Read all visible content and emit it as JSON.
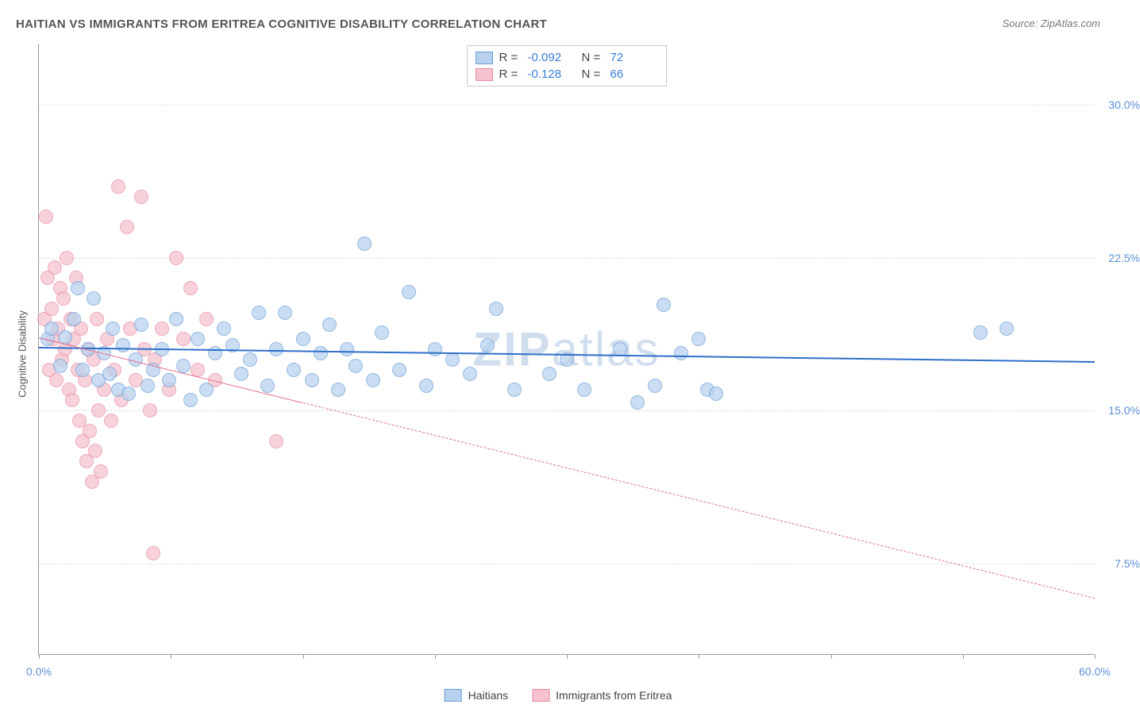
{
  "title": "HAITIAN VS IMMIGRANTS FROM ERITREA COGNITIVE DISABILITY CORRELATION CHART",
  "source": "Source: ZipAtlas.com",
  "watermark": "ZIPatlas",
  "y_axis_title": "Cognitive Disability",
  "chart": {
    "type": "scatter",
    "xlim": [
      0,
      60
    ],
    "ylim": [
      3,
      33
    ],
    "x_ticks": [
      0,
      7.5,
      15,
      22.5,
      30,
      37.5,
      45,
      52.5,
      60
    ],
    "x_tick_labels": {
      "0": "0.0%",
      "60": "60.0%"
    },
    "y_gridlines": [
      7.5,
      15.0,
      22.5,
      30.0
    ],
    "y_tick_labels": [
      "7.5%",
      "15.0%",
      "22.5%",
      "30.0%"
    ],
    "background_color": "#ffffff",
    "grid_color": "#dddddd",
    "axis_color": "#999999",
    "tick_label_color": "#5b8fd6"
  },
  "series": [
    {
      "name": "Haitians",
      "fill": "#b8d1ee",
      "stroke": "#6a9fd8",
      "fill_opacity": 0.72,
      "line_color": "#2e6fc9",
      "line_width": 2.5,
      "line_dash": "solid",
      "R": "-0.092",
      "N": "72",
      "regression": {
        "x1": 0,
        "y1": 18.1,
        "x2": 60,
        "y2": 17.4
      },
      "points": [
        [
          0.5,
          18.5
        ],
        [
          0.7,
          19.0
        ],
        [
          1.2,
          17.2
        ],
        [
          1.5,
          18.6
        ],
        [
          2.0,
          19.5
        ],
        [
          2.2,
          21.0
        ],
        [
          2.5,
          17.0
        ],
        [
          2.8,
          18.0
        ],
        [
          3.1,
          20.5
        ],
        [
          3.4,
          16.5
        ],
        [
          3.7,
          17.8
        ],
        [
          4.0,
          16.8
        ],
        [
          4.2,
          19.0
        ],
        [
          4.5,
          16.0
        ],
        [
          4.8,
          18.2
        ],
        [
          5.1,
          15.8
        ],
        [
          5.5,
          17.5
        ],
        [
          5.8,
          19.2
        ],
        [
          6.2,
          16.2
        ],
        [
          6.5,
          17.0
        ],
        [
          7.0,
          18.0
        ],
        [
          7.4,
          16.5
        ],
        [
          7.8,
          19.5
        ],
        [
          8.2,
          17.2
        ],
        [
          8.6,
          15.5
        ],
        [
          9.0,
          18.5
        ],
        [
          9.5,
          16.0
        ],
        [
          10.0,
          17.8
        ],
        [
          10.5,
          19.0
        ],
        [
          11.0,
          18.2
        ],
        [
          11.5,
          16.8
        ],
        [
          12.0,
          17.5
        ],
        [
          12.5,
          19.8
        ],
        [
          13.0,
          16.2
        ],
        [
          13.5,
          18.0
        ],
        [
          14.0,
          19.8
        ],
        [
          14.5,
          17.0
        ],
        [
          15.0,
          18.5
        ],
        [
          15.5,
          16.5
        ],
        [
          16.0,
          17.8
        ],
        [
          16.5,
          19.2
        ],
        [
          17.0,
          16.0
        ],
        [
          17.5,
          18.0
        ],
        [
          18.0,
          17.2
        ],
        [
          18.5,
          23.2
        ],
        [
          19.0,
          16.5
        ],
        [
          19.5,
          18.8
        ],
        [
          20.5,
          17.0
        ],
        [
          21.0,
          20.8
        ],
        [
          22.0,
          16.2
        ],
        [
          22.5,
          18.0
        ],
        [
          23.5,
          17.5
        ],
        [
          24.5,
          16.8
        ],
        [
          25.5,
          18.2
        ],
        [
          26.0,
          20.0
        ],
        [
          27.0,
          16.0
        ],
        [
          29.0,
          16.8
        ],
        [
          30.0,
          17.5
        ],
        [
          31.0,
          16.0
        ],
        [
          33.0,
          18.0
        ],
        [
          34.0,
          15.4
        ],
        [
          35.0,
          16.2
        ],
        [
          35.5,
          20.2
        ],
        [
          36.5,
          17.8
        ],
        [
          37.5,
          18.5
        ],
        [
          38.0,
          16.0
        ],
        [
          38.5,
          15.8
        ],
        [
          53.5,
          18.8
        ],
        [
          55.0,
          19.0
        ]
      ]
    },
    {
      "name": "Immigrants from Eritrea",
      "fill": "#f5c2ce",
      "stroke": "#e88ba3",
      "fill_opacity": 0.72,
      "line_color": "#e26f8d",
      "line_width": 1.5,
      "line_dash": "dashed",
      "dash_solid_until": 15,
      "R": "-0.128",
      "N": "66",
      "regression": {
        "x1": 0,
        "y1": 18.6,
        "x2": 60,
        "y2": 5.8
      },
      "points": [
        [
          0.3,
          19.5
        ],
        [
          0.4,
          24.5
        ],
        [
          0.5,
          21.5
        ],
        [
          0.6,
          17.0
        ],
        [
          0.7,
          20.0
        ],
        [
          0.8,
          18.5
        ],
        [
          0.9,
          22.0
        ],
        [
          1.0,
          16.5
        ],
        [
          1.1,
          19.0
        ],
        [
          1.2,
          21.0
        ],
        [
          1.3,
          17.5
        ],
        [
          1.4,
          20.5
        ],
        [
          1.5,
          18.0
        ],
        [
          1.6,
          22.5
        ],
        [
          1.7,
          16.0
        ],
        [
          1.8,
          19.5
        ],
        [
          1.9,
          15.5
        ],
        [
          2.0,
          18.5
        ],
        [
          2.1,
          21.5
        ],
        [
          2.2,
          17.0
        ],
        [
          2.3,
          14.5
        ],
        [
          2.4,
          19.0
        ],
        [
          2.5,
          13.5
        ],
        [
          2.6,
          16.5
        ],
        [
          2.7,
          12.5
        ],
        [
          2.8,
          18.0
        ],
        [
          2.9,
          14.0
        ],
        [
          3.0,
          11.5
        ],
        [
          3.1,
          17.5
        ],
        [
          3.2,
          13.0
        ],
        [
          3.3,
          19.5
        ],
        [
          3.4,
          15.0
        ],
        [
          3.5,
          12.0
        ],
        [
          3.7,
          16.0
        ],
        [
          3.9,
          18.5
        ],
        [
          4.1,
          14.5
        ],
        [
          4.3,
          17.0
        ],
        [
          4.5,
          26.0
        ],
        [
          4.7,
          15.5
        ],
        [
          5.0,
          24.0
        ],
        [
          5.2,
          19.0
        ],
        [
          5.5,
          16.5
        ],
        [
          5.8,
          25.5
        ],
        [
          6.0,
          18.0
        ],
        [
          6.3,
          15.0
        ],
        [
          6.6,
          17.5
        ],
        [
          7.0,
          19.0
        ],
        [
          7.4,
          16.0
        ],
        [
          7.8,
          22.5
        ],
        [
          8.2,
          18.5
        ],
        [
          8.6,
          21.0
        ],
        [
          9.0,
          17.0
        ],
        [
          9.5,
          19.5
        ],
        [
          10.0,
          16.5
        ],
        [
          13.5,
          13.5
        ],
        [
          6.5,
          8.0
        ]
      ]
    }
  ],
  "stat_legend_labels": {
    "R": "R =",
    "N": "N ="
  },
  "bottom_legend": [
    "Haitians",
    "Immigrants from Eritrea"
  ]
}
